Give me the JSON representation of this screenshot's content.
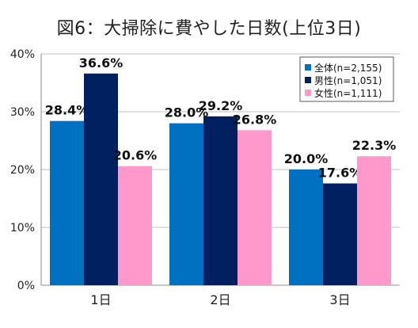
{
  "chart_data": {
    "type": "bar",
    "title": "図6：大掃除に費やした日数(上位3日)",
    "categories": [
      "1日",
      "2日",
      "3日"
    ],
    "series": [
      {
        "name": "全体(n=2,155)",
        "values": [
          28.4,
          28.0,
          20.0
        ],
        "labels": [
          "28.4%",
          "28.0%",
          "20.0%"
        ],
        "color": "#0070C0"
      },
      {
        "name": "男性(n=1,051)",
        "values": [
          36.6,
          29.2,
          17.6
        ],
        "labels": [
          "36.6%",
          "29.2%",
          "17.6%"
        ],
        "color": "#002060"
      },
      {
        "name": "女性(n=1,111)",
        "values": [
          20.6,
          26.8,
          22.3
        ],
        "labels": [
          "20.6%",
          "26.8%",
          "22.3%"
        ],
        "color": "#FF99CC"
      }
    ],
    "yticks": [
      "0%",
      "10%",
      "20%",
      "30%",
      "40%"
    ],
    "ylim": [
      0,
      40
    ],
    "grid": true,
    "legend_position": "top-right"
  }
}
